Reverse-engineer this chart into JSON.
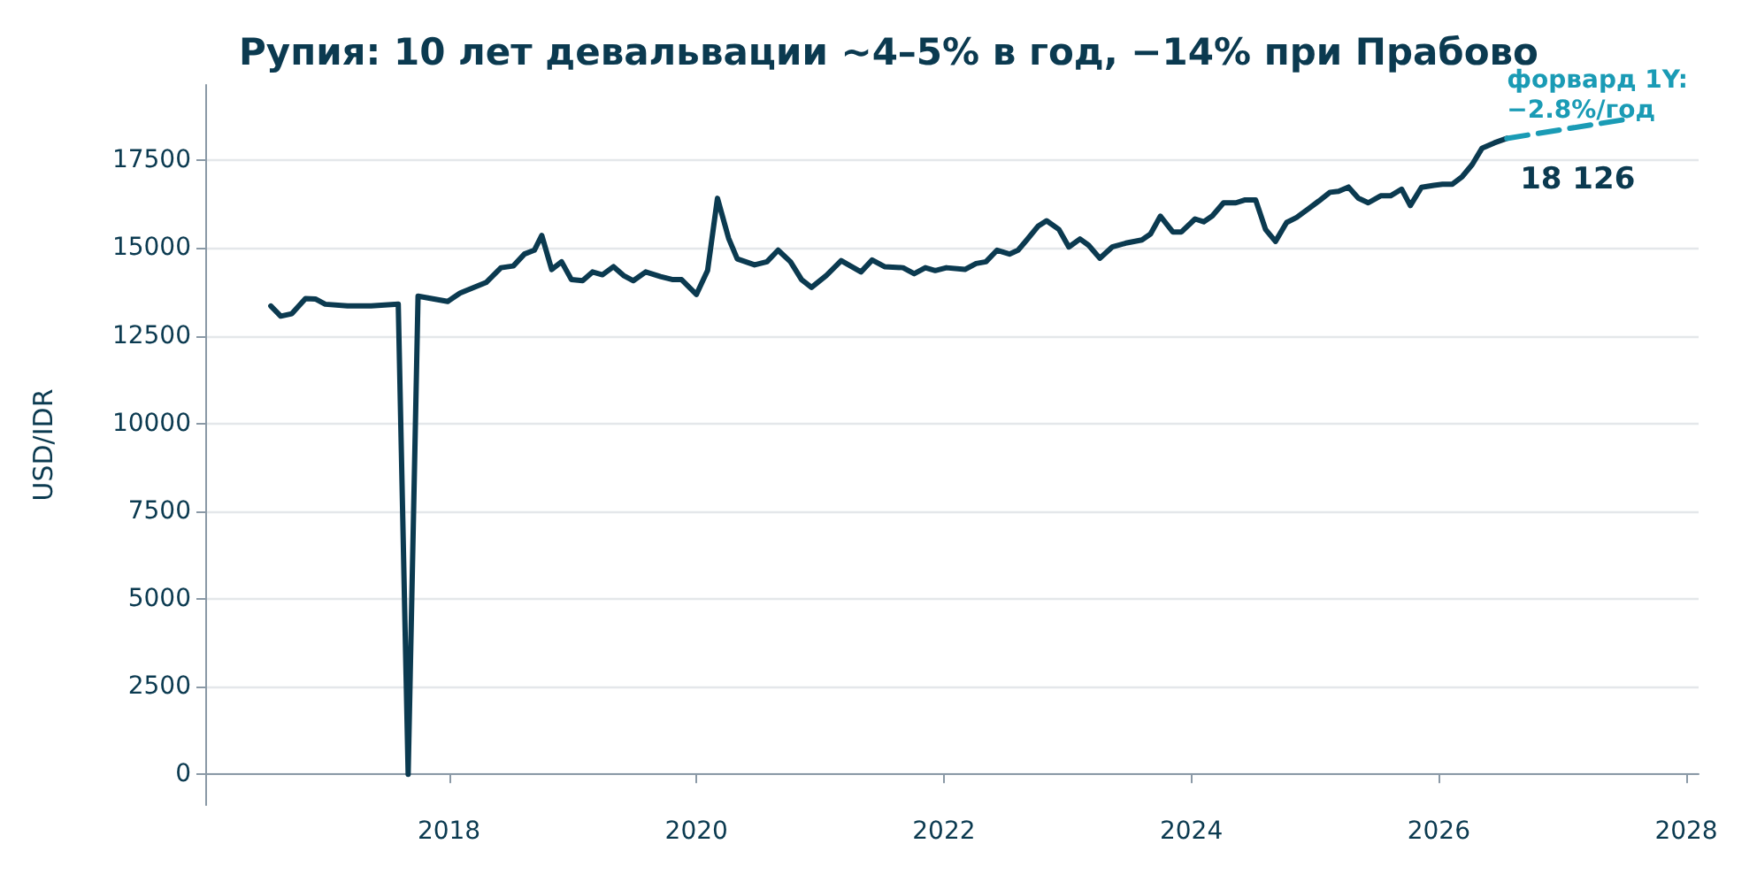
{
  "chart_data": {
    "type": "line",
    "title": "Рупия: 10 лет девальвации ~4–5% в год, −14% при Прабово",
    "ylabel": "USD/IDR",
    "xlim": [
      2016.03,
      2028.1
    ],
    "xticks": [
      2018,
      2020,
      2022,
      2024,
      2026,
      2028
    ],
    "ylim": [
      -875,
      19650
    ],
    "yticks": [
      0,
      2500,
      5000,
      7500,
      10000,
      12500,
      15000,
      17500
    ],
    "grid": "y",
    "legend": false,
    "marker": "none",
    "series": [
      {
        "color": "#0b3a50",
        "line_style": "solid",
        "x": [
          2016.56,
          2016.64,
          2016.73,
          2016.84,
          2016.92,
          2017.0,
          2017.18,
          2017.37,
          2017.59,
          2017.67,
          2017.75,
          2017.99,
          2018.09,
          2018.3,
          2018.42,
          2018.52,
          2018.61,
          2018.69,
          2018.75,
          2018.83,
          2018.91,
          2018.99,
          2019.08,
          2019.16,
          2019.24,
          2019.33,
          2019.41,
          2019.49,
          2019.59,
          2019.71,
          2019.81,
          2019.88,
          2020.0,
          2020.09,
          2020.17,
          2020.26,
          2020.33,
          2020.47,
          2020.57,
          2020.66,
          2020.76,
          2020.85,
          2020.93,
          2021.05,
          2021.17,
          2021.33,
          2021.42,
          2021.52,
          2021.67,
          2021.76,
          2021.85,
          2021.93,
          2022.02,
          2022.17,
          2022.26,
          2022.34,
          2022.43,
          2022.53,
          2022.6,
          2022.67,
          2022.76,
          2022.83,
          2022.93,
          2023.01,
          2023.1,
          2023.17,
          2023.26,
          2023.36,
          2023.48,
          2023.6,
          2023.67,
          2023.75,
          2023.85,
          2023.92,
          2024.03,
          2024.1,
          2024.17,
          2024.26,
          2024.36,
          2024.43,
          2024.52,
          2024.6,
          2024.68,
          2024.77,
          2024.85,
          2024.95,
          2025.03,
          2025.12,
          2025.19,
          2025.27,
          2025.35,
          2025.43,
          2025.53,
          2025.61,
          2025.7,
          2025.77,
          2025.86,
          2025.96,
          2026.03,
          2026.11,
          2026.19,
          2026.27,
          2026.35,
          2026.45,
          2026.55
        ],
        "values": [
          13350,
          13060,
          13130,
          13560,
          13550,
          13400,
          13350,
          13350,
          13400,
          0,
          13630,
          13480,
          13720,
          14020,
          14440,
          14490,
          14830,
          14940,
          15360,
          14390,
          14610,
          14100,
          14070,
          14320,
          14240,
          14470,
          14220,
          14070,
          14320,
          14190,
          14100,
          14100,
          13680,
          14360,
          16420,
          15280,
          14690,
          14520,
          14610,
          14940,
          14610,
          14100,
          13880,
          14220,
          14640,
          14320,
          14660,
          14470,
          14440,
          14270,
          14440,
          14360,
          14440,
          14390,
          14560,
          14610,
          14940,
          14830,
          14940,
          15230,
          15620,
          15780,
          15530,
          15030,
          15260,
          15080,
          14710,
          15030,
          15150,
          15230,
          15400,
          15910,
          15460,
          15460,
          15830,
          15750,
          15920,
          16290,
          16290,
          16370,
          16370,
          15530,
          15190,
          15730,
          15870,
          16130,
          16340,
          16590,
          16620,
          16740,
          16420,
          16290,
          16490,
          16490,
          16680,
          16210,
          16730,
          16790,
          16820,
          16820,
          17040,
          17380,
          17850,
          18000,
          18126
        ],
        "value_labels": [
          null,
          null,
          null,
          null,
          null,
          null,
          null,
          null,
          null,
          null,
          null,
          null,
          null,
          null,
          null,
          null,
          null,
          null,
          null,
          null,
          null,
          null,
          null,
          null,
          null,
          null,
          null,
          null,
          null,
          null,
          null,
          null,
          null,
          null,
          null,
          null,
          null,
          null,
          null,
          null,
          null,
          null,
          null,
          null,
          null,
          null,
          null,
          null,
          null,
          null,
          null,
          null,
          null,
          null,
          null,
          null,
          null,
          null,
          null,
          null,
          null,
          null,
          null,
          null,
          null,
          null,
          null,
          null,
          null,
          null,
          null,
          null,
          null,
          null,
          null,
          null,
          null,
          null,
          null,
          null,
          null,
          null,
          null,
          null,
          null,
          null,
          null,
          null,
          null,
          null,
          null,
          null,
          null,
          null,
          null,
          null,
          null,
          null,
          null,
          null,
          null,
          null,
          null,
          null,
          "18 126"
        ]
      },
      {
        "name": "форвард 1Y:\n−2.8%/год",
        "color": "#1a9bb5",
        "line_style": "dashed",
        "x": [
          2026.55,
          2027.55
        ],
        "values": [
          18126,
          18690
        ]
      }
    ]
  }
}
